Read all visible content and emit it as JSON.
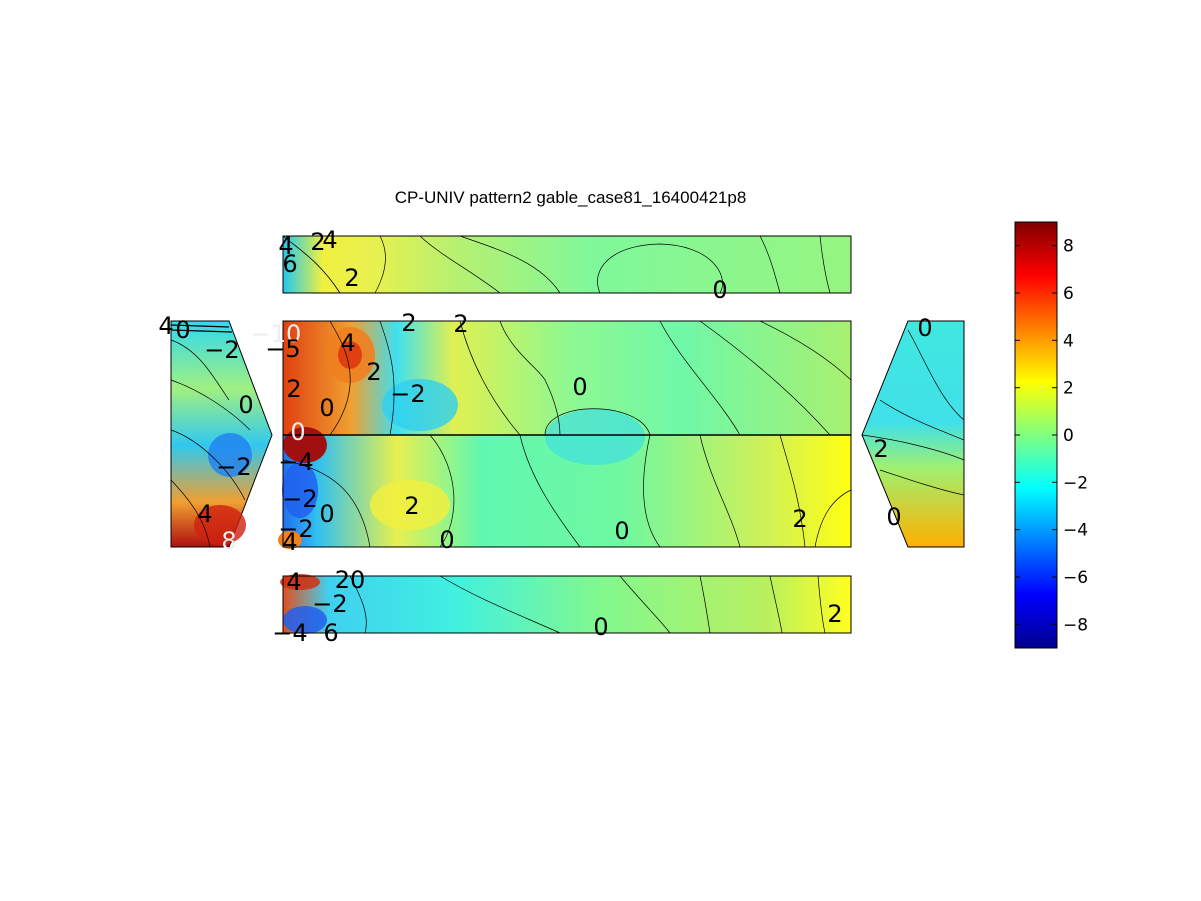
{
  "chart_data": {
    "type": "heatmap",
    "title": "CP-UNIV pattern2 gable_case81_16400421p8",
    "colormap": "jet",
    "colorbar": {
      "range": [
        -9,
        9
      ],
      "ticks": [
        "8",
        "6",
        "4",
        "2",
        "0",
        "−2",
        "−4",
        "−6",
        "−8"
      ],
      "tick_values": [
        8,
        6,
        4,
        2,
        0,
        -2,
        -4,
        -6,
        -8
      ],
      "placement": "right"
    },
    "panels": [
      {
        "name": "top-roof-strip",
        "contour_labels": [
          "4",
          "2",
          "4",
          "6",
          "2",
          "0"
        ],
        "label_values": [
          4,
          2,
          4,
          6,
          2,
          0
        ]
      },
      {
        "name": "left-gable",
        "contour_labels": [
          "4",
          "0",
          "−2",
          "0",
          "−2",
          "4",
          "8"
        ],
        "label_values": [
          4,
          0,
          -2,
          0,
          -2,
          4,
          8
        ]
      },
      {
        "name": "main-wall",
        "contour_labels": [
          "2",
          "2",
          "−10",
          "4",
          "−5",
          "2",
          "0",
          "−2",
          "2",
          "0",
          "0",
          "−4",
          "−2",
          "0",
          "2",
          "4",
          "0",
          "0",
          "2",
          "−2"
        ],
        "label_values": [
          2,
          2,
          -10,
          4,
          -5,
          2,
          0,
          -2,
          2,
          0,
          0,
          -4,
          -2,
          0,
          2,
          4,
          0,
          0,
          2,
          -2
        ]
      },
      {
        "name": "right-gable",
        "contour_labels": [
          "0",
          "2",
          "0"
        ],
        "label_values": [
          0,
          2,
          0
        ]
      },
      {
        "name": "bottom-roof-strip",
        "contour_labels": [
          "4",
          "20",
          "−2",
          "2",
          "0",
          "−4",
          "6"
        ],
        "label_values": [
          4,
          20,
          -2,
          2,
          0,
          -4,
          6
        ]
      }
    ]
  }
}
